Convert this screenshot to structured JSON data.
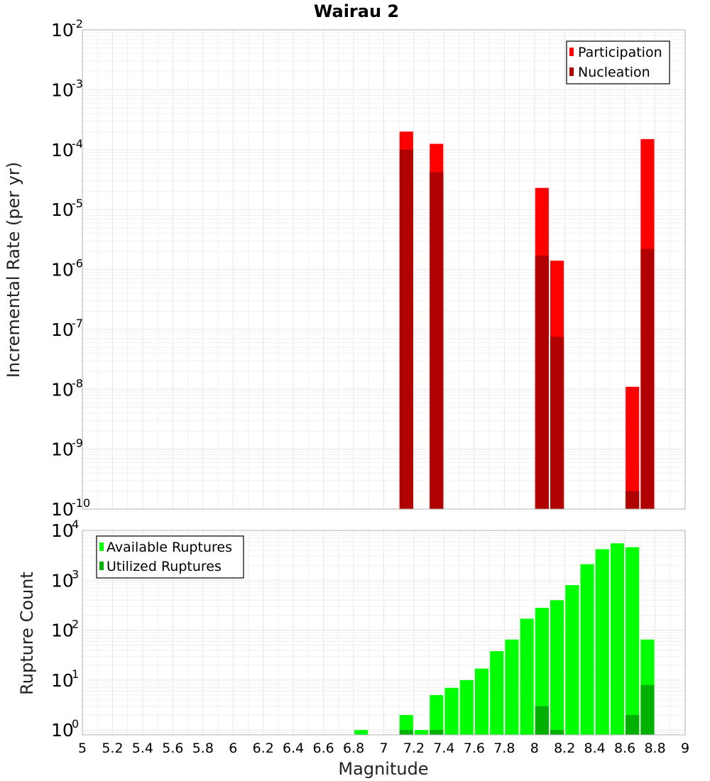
{
  "chart_data": [
    {
      "type": "bar",
      "title": "Wairau 2",
      "ylabel": "Incremental Rate (per yr)",
      "xlabel": "",
      "yscale": "log",
      "ylim_exponents": [
        -10,
        -2
      ],
      "xlim": [
        5,
        9
      ],
      "bar_width": 0.09,
      "legend": {
        "placement": "top-right",
        "entries": [
          "Participation",
          "Nucleation"
        ]
      },
      "colors": {
        "Participation": "#ff0000",
        "Nucleation": "#b00000"
      },
      "series": [
        {
          "name": "Participation",
          "x": [
            7.15,
            7.35,
            8.05,
            8.15,
            8.65,
            8.75
          ],
          "values": [
            0.0002,
            0.000125,
            2.3e-05,
            1.4e-06,
            1.1e-08,
            0.00015
          ]
        },
        {
          "name": "Nucleation",
          "x": [
            7.15,
            7.35,
            8.05,
            8.15,
            8.65,
            8.75
          ],
          "values": [
            0.0001,
            4.2e-05,
            1.7e-06,
            7.5e-08,
            2e-10,
            2.2e-06
          ]
        }
      ],
      "y_ticks": [
        {
          "base": "10",
          "exp": "-2"
        },
        {
          "base": "10",
          "exp": "-3"
        },
        {
          "base": "10",
          "exp": "-4"
        },
        {
          "base": "10",
          "exp": "-5"
        },
        {
          "base": "10",
          "exp": "-6"
        },
        {
          "base": "10",
          "exp": "-7"
        },
        {
          "base": "10",
          "exp": "-8"
        },
        {
          "base": "10",
          "exp": "-9"
        },
        {
          "base": "10",
          "exp": "-10"
        }
      ],
      "grid": true
    },
    {
      "type": "bar",
      "title": "",
      "ylabel": "Rupture Count",
      "xlabel": "Magnitude",
      "yscale": "log",
      "ylim": [
        0.8,
        10000
      ],
      "xlim": [
        5,
        9
      ],
      "bar_width": 0.09,
      "legend": {
        "placement": "top-left",
        "entries": [
          "Available Ruptures",
          "Utilized Ruptures"
        ]
      },
      "colors": {
        "Available Ruptures": "#00ff00",
        "Utilized Ruptures": "#00b000"
      },
      "series": [
        {
          "name": "Available Ruptures",
          "x": [
            6.85,
            7.15,
            7.25,
            7.35,
            7.45,
            7.55,
            7.65,
            7.75,
            7.85,
            7.95,
            8.05,
            8.15,
            8.25,
            8.35,
            8.45,
            8.55,
            8.65,
            8.75
          ],
          "values": [
            1,
            2,
            1,
            5,
            7,
            10,
            17,
            38,
            65,
            170,
            280,
            400,
            800,
            2100,
            4200,
            5500,
            4600,
            65
          ]
        },
        {
          "name": "Utilized Ruptures",
          "x": [
            7.15,
            7.35,
            8.05,
            8.15,
            8.65,
            8.75
          ],
          "values": [
            1,
            1,
            3,
            1,
            2,
            8
          ]
        }
      ],
      "y_ticks": [
        {
          "base": "10",
          "exp": "4"
        },
        {
          "base": "10",
          "exp": "3"
        },
        {
          "base": "10",
          "exp": "2"
        },
        {
          "base": "10",
          "exp": "1"
        },
        {
          "base": "10",
          "exp": "0"
        }
      ],
      "x_ticks": [
        "5",
        "5.2",
        "5.4",
        "5.6",
        "5.8",
        "6",
        "6.2",
        "6.4",
        "6.6",
        "6.8",
        "7",
        "7.2",
        "7.4",
        "7.6",
        "7.8",
        "8",
        "8.2",
        "8.4",
        "8.6",
        "8.8",
        "9"
      ],
      "grid": true
    }
  ]
}
